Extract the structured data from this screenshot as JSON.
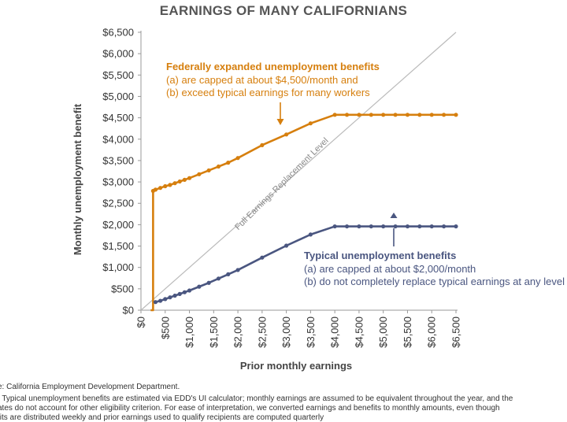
{
  "chart_data": {
    "type": "line",
    "title": "EARNINGS OF MANY CALIFORNIANS",
    "xlabel": "Prior monthly earnings",
    "ylabel": "Monthly unemployment benefit",
    "xlim": [
      0,
      6500
    ],
    "ylim": [
      0,
      6500
    ],
    "xticks": [
      0,
      500,
      1000,
      1500,
      2000,
      2500,
      3000,
      3500,
      4000,
      4500,
      5000,
      5500,
      6000,
      6500
    ],
    "xtick_labels": [
      "$0",
      "$500",
      "$1,000",
      "$1,500",
      "$2,000",
      "$2,500",
      "$3,000",
      "$3,500",
      "$4,000",
      "$4,500",
      "$5,000",
      "$5,500",
      "$6,000",
      "$6,500"
    ],
    "yticks": [
      0,
      500,
      1000,
      1500,
      2000,
      2500,
      3000,
      3500,
      4000,
      4500,
      5000,
      5500,
      6000,
      6500
    ],
    "ytick_labels": [
      "$0",
      "$500",
      "$1,000",
      "$1,500",
      "$2,000",
      "$2,500",
      "$3,000",
      "$3,500",
      "$4,000",
      "$4,500",
      "$5,000",
      "$5,500",
      "$6,000",
      "$6,500"
    ],
    "reference_line": {
      "name": "Full Earnings Replacement Level",
      "x": [
        0,
        6500
      ],
      "y": [
        0,
        6500
      ],
      "color": "#BBBBBB"
    },
    "series": [
      {
        "name": "Federally expanded unemployment benefits",
        "color": "#D67F0E",
        "x": [
          200,
          250,
          250,
          300,
          400,
          500,
          600,
          700,
          800,
          900,
          1000,
          1200,
          1400,
          1600,
          1800,
          2000,
          2500,
          3000,
          3500,
          4000,
          4250,
          4500,
          4750,
          5000,
          5250,
          5500,
          5750,
          6000,
          6250,
          6500
        ],
        "y": [
          0,
          0,
          2790,
          2820,
          2860,
          2900,
          2930,
          2970,
          3010,
          3050,
          3090,
          3180,
          3270,
          3360,
          3450,
          3560,
          3860,
          4110,
          4370,
          4570,
          4570,
          4570,
          4570,
          4570,
          4570,
          4570,
          4570,
          4570,
          4570,
          4570
        ],
        "marker_start": 2
      },
      {
        "name": "Typical unemployment benefits",
        "color": "#4A5680",
        "x": [
          300,
          400,
          500,
          600,
          700,
          800,
          900,
          1000,
          1200,
          1400,
          1600,
          1800,
          2000,
          2500,
          3000,
          3500,
          4000,
          4250,
          4500,
          4750,
          5000,
          5250,
          5500,
          5750,
          6000,
          6250,
          6500
        ],
        "y": [
          190,
          220,
          260,
          300,
          340,
          380,
          420,
          460,
          550,
          640,
          740,
          840,
          940,
          1230,
          1510,
          1770,
          1960,
          1960,
          1960,
          1960,
          1960,
          1960,
          1960,
          1960,
          1960,
          1960,
          1960
        ],
        "marker_start": 0
      }
    ],
    "annotations": {
      "federal": {
        "title": "Federally expanded unemployment benefits",
        "line_a": "(a) are capped at about $4,500/month and",
        "line_b": "(b) exceed typical earnings for many workers"
      },
      "typical": {
        "title": "Typical unemployment benefits",
        "line_a": "(a) are capped at about $2,000/month",
        "line_b": "(b) do not completely replace typical earnings at any level"
      }
    }
  },
  "footnotes": {
    "source": "e: California Employment Development Department.",
    "note_1": ": Typical unemployment benefits are estimated via EDD's UI calculator; monthly earnings are assumed to be equivalent throughout the year, and the",
    "note_2": "ates do not account for other eligibility criterion. For ease of interpretation, we converted earnings and benefits to monthly amounts, even though",
    "note_3": "fits are distributed weekly and prior earnings used to qualify recipients are computed quarterly"
  },
  "colors": {
    "federal": "#D67F0E",
    "typical": "#4A5680",
    "reference": "#BBBBBB",
    "axis": "#999999"
  }
}
